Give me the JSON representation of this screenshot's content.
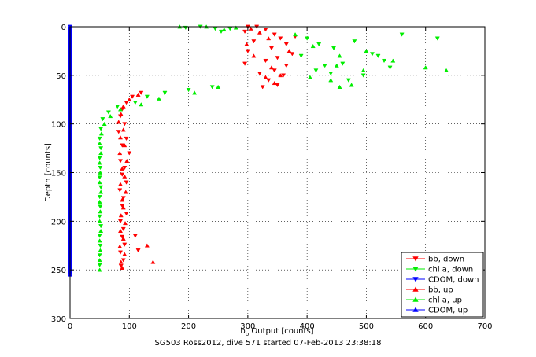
{
  "caption": "SG503 Ross2012, dive 571 started 07-Feb-2013 23:38:18",
  "chart_data": {
    "type": "scatter",
    "xlabel_main": "b",
    "xlabel_sub": "b",
    "xlabel_rest": " Output [counts]",
    "ylabel": "Depth [counts]",
    "xlim": [
      0,
      700
    ],
    "ylim": [
      0,
      300
    ],
    "y_reversed": true,
    "xticks": [
      0,
      100,
      200,
      300,
      400,
      500,
      600,
      700
    ],
    "yticks": [
      0,
      50,
      100,
      150,
      200,
      250,
      300
    ],
    "grid": true,
    "legend_position": "bottom-right",
    "series": [
      {
        "name": "bb, down",
        "color": "#ff0000",
        "marker": "triangle-down",
        "points": [
          [
            300,
            0
          ],
          [
            315,
            0
          ],
          [
            330,
            3
          ],
          [
            295,
            5
          ],
          [
            345,
            8
          ],
          [
            380,
            10
          ],
          [
            355,
            12
          ],
          [
            310,
            15
          ],
          [
            365,
            18
          ],
          [
            340,
            22
          ],
          [
            300,
            25
          ],
          [
            375,
            28
          ],
          [
            350,
            32
          ],
          [
            330,
            35
          ],
          [
            295,
            38
          ],
          [
            365,
            40
          ],
          [
            345,
            45
          ],
          [
            320,
            48
          ],
          [
            360,
            50
          ],
          [
            335,
            55
          ],
          [
            350,
            60
          ],
          [
            325,
            62
          ],
          [
            120,
            68
          ],
          [
            105,
            72
          ],
          [
            95,
            78
          ],
          [
            88,
            85
          ],
          [
            85,
            92
          ],
          [
            92,
            100
          ],
          [
            82,
            108
          ],
          [
            95,
            115
          ],
          [
            88,
            122
          ],
          [
            100,
            130
          ],
          [
            85,
            138
          ],
          [
            92,
            145
          ],
          [
            88,
            152
          ],
          [
            95,
            160
          ],
          [
            84,
            168
          ],
          [
            90,
            176
          ],
          [
            88,
            184
          ],
          [
            95,
            192
          ],
          [
            85,
            200
          ],
          [
            90,
            208
          ],
          [
            88,
            216
          ],
          [
            92,
            224
          ],
          [
            85,
            232
          ],
          [
            90,
            240
          ],
          [
            86,
            246
          ],
          [
            110,
            215
          ],
          [
            115,
            230
          ]
        ]
      },
      {
        "name": "chl a, down",
        "color": "#00ee00",
        "marker": "triangle-down",
        "points": [
          [
            220,
            0
          ],
          [
            245,
            2
          ],
          [
            270,
            2
          ],
          [
            195,
            1
          ],
          [
            255,
            5
          ],
          [
            400,
            12
          ],
          [
            420,
            18
          ],
          [
            445,
            22
          ],
          [
            480,
            15
          ],
          [
            510,
            28
          ],
          [
            530,
            35
          ],
          [
            460,
            38
          ],
          [
            440,
            48
          ],
          [
            470,
            55
          ],
          [
            495,
            50
          ],
          [
            520,
            30
          ],
          [
            540,
            42
          ],
          [
            620,
            12
          ],
          [
            560,
            8
          ],
          [
            390,
            30
          ],
          [
            415,
            45
          ],
          [
            430,
            40
          ],
          [
            240,
            62
          ],
          [
            200,
            65
          ],
          [
            160,
            68
          ],
          [
            130,
            72
          ],
          [
            110,
            78
          ],
          [
            80,
            82
          ],
          [
            65,
            88
          ],
          [
            55,
            95
          ],
          [
            52,
            105
          ],
          [
            50,
            115
          ],
          [
            52,
            125
          ],
          [
            50,
            135
          ],
          [
            51,
            145
          ],
          [
            50,
            155
          ],
          [
            52,
            165
          ],
          [
            50,
            175
          ],
          [
            51,
            185
          ],
          [
            50,
            195
          ],
          [
            52,
            205
          ],
          [
            50,
            215
          ],
          [
            51,
            225
          ],
          [
            50,
            235
          ],
          [
            50,
            245
          ]
        ]
      },
      {
        "name": "CDOM, down",
        "color": "#0000ff",
        "marker": "triangle-down",
        "points": [
          [
            0,
            0
          ],
          [
            0,
            25
          ],
          [
            0,
            50
          ],
          [
            0,
            75
          ],
          [
            0,
            100
          ],
          [
            0,
            125
          ],
          [
            0,
            150
          ],
          [
            0,
            175
          ],
          [
            0,
            200
          ],
          [
            0,
            225
          ],
          [
            0,
            250
          ],
          [
            0,
            255
          ]
        ]
      },
      {
        "name": "bb, up",
        "color": "#ff0000",
        "marker": "triangle-up",
        "points": [
          [
            305,
            2
          ],
          [
            320,
            6
          ],
          [
            335,
            12
          ],
          [
            298,
            18
          ],
          [
            310,
            30
          ],
          [
            340,
            42
          ],
          [
            330,
            52
          ],
          [
            345,
            58
          ],
          [
            355,
            50
          ],
          [
            370,
            25
          ],
          [
            115,
            70
          ],
          [
            100,
            75
          ],
          [
            90,
            82
          ],
          [
            86,
            90
          ],
          [
            82,
            98
          ],
          [
            90,
            106
          ],
          [
            85,
            114
          ],
          [
            92,
            122
          ],
          [
            84,
            130
          ],
          [
            96,
            138
          ],
          [
            88,
            146
          ],
          [
            92,
            154
          ],
          [
            85,
            162
          ],
          [
            94,
            170
          ],
          [
            88,
            178
          ],
          [
            90,
            186
          ],
          [
            86,
            194
          ],
          [
            93,
            202
          ],
          [
            85,
            210
          ],
          [
            90,
            218
          ],
          [
            84,
            226
          ],
          [
            92,
            234
          ],
          [
            86,
            242
          ],
          [
            88,
            248
          ],
          [
            140,
            242
          ],
          [
            130,
            225
          ]
        ]
      },
      {
        "name": "chl a, up",
        "color": "#00ee00",
        "marker": "triangle-up",
        "points": [
          [
            185,
            0
          ],
          [
            230,
            0
          ],
          [
            260,
            3
          ],
          [
            280,
            1
          ],
          [
            380,
            8
          ],
          [
            410,
            20
          ],
          [
            455,
            30
          ],
          [
            500,
            25
          ],
          [
            545,
            35
          ],
          [
            600,
            42
          ],
          [
            635,
            45
          ],
          [
            475,
            60
          ],
          [
            455,
            62
          ],
          [
            440,
            55
          ],
          [
            495,
            45
          ],
          [
            405,
            52
          ],
          [
            450,
            40
          ],
          [
            250,
            62
          ],
          [
            210,
            68
          ],
          [
            150,
            74
          ],
          [
            120,
            80
          ],
          [
            85,
            85
          ],
          [
            68,
            92
          ],
          [
            58,
            100
          ],
          [
            53,
            110
          ],
          [
            50,
            120
          ],
          [
            52,
            130
          ],
          [
            50,
            140
          ],
          [
            51,
            150
          ],
          [
            50,
            160
          ],
          [
            52,
            170
          ],
          [
            50,
            180
          ],
          [
            51,
            190
          ],
          [
            50,
            200
          ],
          [
            52,
            210
          ],
          [
            50,
            220
          ],
          [
            51,
            230
          ],
          [
            50,
            240
          ],
          [
            50,
            250
          ]
        ]
      },
      {
        "name": "CDOM, up",
        "color": "#0000ff",
        "marker": "triangle-up",
        "points": [
          [
            0,
            0
          ],
          [
            0,
            30
          ],
          [
            0,
            60
          ],
          [
            0,
            90
          ],
          [
            0,
            120
          ],
          [
            0,
            150
          ],
          [
            0,
            180
          ],
          [
            0,
            210
          ],
          [
            0,
            240
          ],
          [
            0,
            255
          ]
        ]
      }
    ]
  }
}
